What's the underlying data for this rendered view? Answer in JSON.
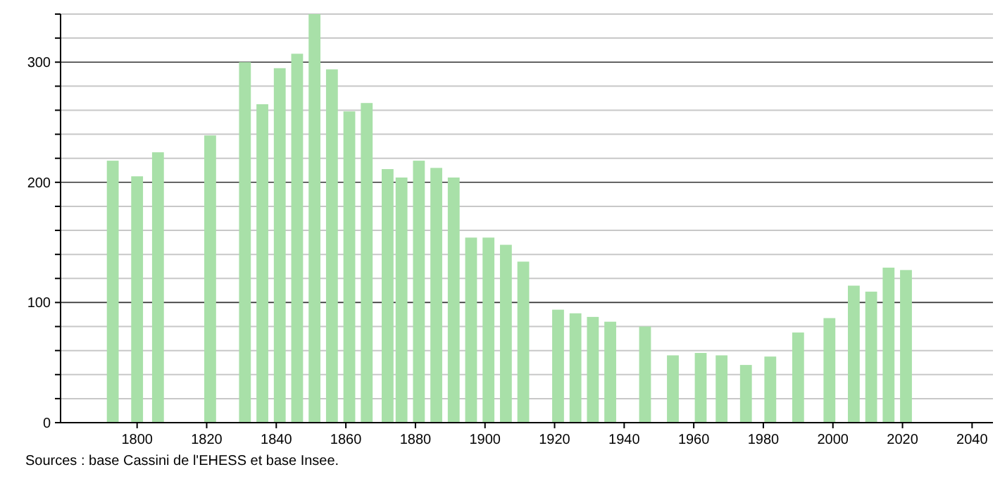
{
  "chart_data": {
    "type": "bar",
    "x": [
      1793,
      1800,
      1806,
      1821,
      1831,
      1836,
      1841,
      1846,
      1851,
      1856,
      1861,
      1866,
      1872,
      1876,
      1881,
      1886,
      1891,
      1896,
      1901,
      1906,
      1911,
      1921,
      1926,
      1931,
      1936,
      1946,
      1954,
      1962,
      1968,
      1975,
      1982,
      1990,
      1999,
      2006,
      2011,
      2016,
      2021
    ],
    "values": [
      218,
      205,
      225,
      239,
      300,
      265,
      295,
      307,
      340,
      294,
      259,
      266,
      211,
      204,
      218,
      212,
      204,
      154,
      154,
      148,
      134,
      94,
      91,
      88,
      84,
      80,
      56,
      58,
      56,
      48,
      55,
      75,
      87,
      114,
      109,
      129,
      127
    ],
    "color": "#a8e0a8",
    "xlim": [
      1778,
      2046
    ],
    "xticks": [
      1800,
      1820,
      1840,
      1860,
      1880,
      1900,
      1920,
      1940,
      1960,
      1980,
      2000,
      2020,
      2040
    ],
    "ylim": [
      0,
      340
    ],
    "yticks": [
      0,
      {
        "value": 20,
        "label": null
      },
      {
        "value": 40,
        "label": null
      },
      {
        "value": 60,
        "label": null
      },
      {
        "value": 80,
        "label": null
      },
      100,
      {
        "value": 120,
        "label": null
      },
      {
        "value": 140,
        "label": null
      },
      {
        "value": 160,
        "label": null
      },
      {
        "value": 180,
        "label": null
      },
      200,
      {
        "value": 220,
        "label": null
      },
      {
        "value": 240,
        "label": null
      },
      {
        "value": 260,
        "label": null
      },
      {
        "value": 280,
        "label": null
      },
      300,
      {
        "value": 320,
        "label": null
      },
      {
        "value": 340,
        "label": null
      }
    ],
    "grid": true,
    "annotations": [
      "Sources : base Cassini de l'EHESS et base Insee."
    ]
  }
}
